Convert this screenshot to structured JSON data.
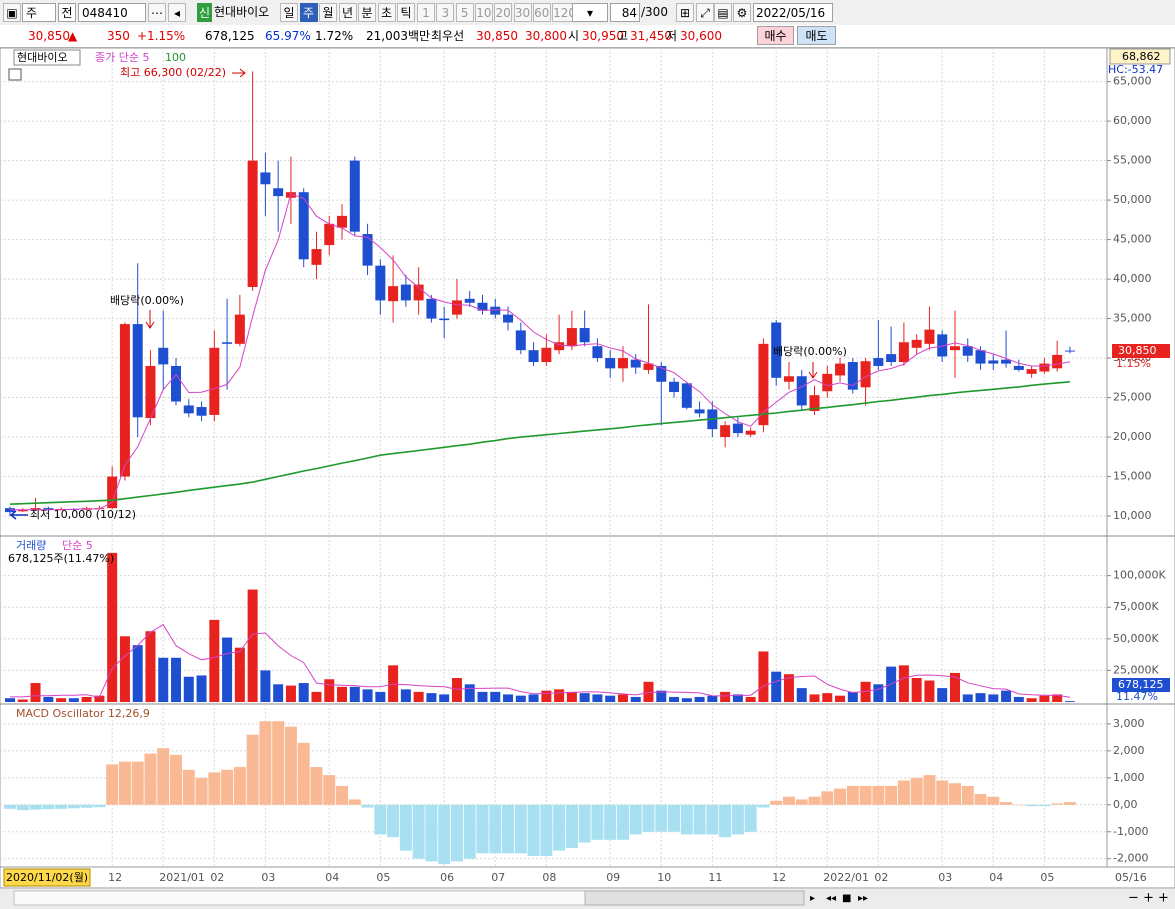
{
  "toolbar": {
    "period_type": "주",
    "market": "전",
    "code": "048410",
    "badge": "신",
    "name": "현대바이오",
    "periods": [
      "일",
      "주",
      "월",
      "년",
      "분",
      "초",
      "틱"
    ],
    "minutes": [
      "1",
      "3",
      "5",
      "10",
      "20",
      "30",
      "60",
      "120"
    ],
    "count": "84",
    "max_count": "/300",
    "date": "2022/05/16"
  },
  "quote": {
    "price": "30,850",
    "sign": "▲",
    "change": "350",
    "change_rate": "+1.15%",
    "volume": "678,125",
    "volume_rate": "65.97%",
    "turnover": "1.72%",
    "amount": "21,003백만",
    "best_label": "최우선",
    "ask": "30,850",
    "bid": "30,800",
    "open_label": "시",
    "open": "30,950",
    "high_label": "고",
    "high": "31,450",
    "low_label": "저",
    "low": "30,600",
    "buy": "매수",
    "sell": "매도"
  },
  "chart_data": [
    {
      "type": "candlestick",
      "legend_name": "현대바이오",
      "grid": true,
      "up_color": "#e8231f",
      "down_color": "#1f4fd1",
      "categories": [
        null,
        null,
        null,
        null,
        null,
        null,
        null,
        null,
        "12",
        null,
        null,
        null,
        "2021/01",
        null,
        null,
        null,
        "02",
        null,
        null,
        null,
        "03",
        null,
        null,
        null,
        null,
        "04",
        null,
        null,
        null,
        "05",
        null,
        null,
        null,
        null,
        "06",
        null,
        null,
        null,
        "07",
        null,
        null,
        null,
        "08",
        null,
        null,
        null,
        null,
        "09",
        null,
        null,
        null,
        "10",
        null,
        null,
        null,
        "11",
        null,
        null,
        null,
        null,
        "12",
        null,
        null,
        null,
        "2022/01",
        null,
        null,
        null,
        "02",
        null,
        null,
        null,
        null,
        "03",
        null,
        null,
        null,
        "04",
        null,
        null,
        null,
        "05",
        null,
        null
      ],
      "cursor_label": "2020/11/02(월)",
      "end_label": "05/16",
      "open": [
        11000,
        10600,
        10800,
        11000,
        10800,
        10900,
        10800,
        10900,
        11000,
        15000,
        34300,
        22400,
        31300,
        29000,
        24000,
        23800,
        22800,
        32000,
        31800,
        39000,
        53500,
        51500,
        50300,
        51000,
        41800,
        44300,
        46500,
        55000,
        45700,
        41700,
        37200,
        39300,
        37300,
        37500,
        35000,
        35500,
        37500,
        37000,
        36500,
        35500,
        33500,
        31000,
        29500,
        31000,
        31500,
        33800,
        31500,
        30000,
        28700,
        29800,
        28500,
        29000,
        27000,
        26800,
        23500,
        23500,
        20000,
        21700,
        20300,
        21500,
        34500,
        27000,
        27700,
        23300,
        25800,
        27800,
        29500,
        26300,
        30000,
        30500,
        29500,
        31300,
        31800,
        33000,
        31000,
        31500,
        31000,
        29700,
        29800,
        29000,
        28000,
        28300,
        28700,
        30950
      ],
      "high": [
        11200,
        11000,
        12300,
        11200,
        11100,
        11000,
        11200,
        11300,
        16300,
        34500,
        42000,
        31000,
        36000,
        30000,
        24800,
        24500,
        33500,
        37500,
        38000,
        66300,
        56000,
        55000,
        55500,
        51500,
        46000,
        48000,
        49500,
        55500,
        47000,
        42500,
        43000,
        40500,
        41500,
        38000,
        36500,
        40000,
        38500,
        38000,
        37500,
        36500,
        34500,
        32000,
        33000,
        35500,
        36000,
        36000,
        32500,
        31000,
        31500,
        30500,
        36800,
        29500,
        27500,
        27000,
        24500,
        24500,
        22000,
        22500,
        21200,
        32500,
        34800,
        29500,
        28500,
        26500,
        29000,
        30000,
        30000,
        30000,
        34800,
        34000,
        34500,
        33000,
        36500,
        33500,
        36000,
        32500,
        31500,
        30500,
        33500,
        29800,
        29000,
        30000,
        32200,
        31450
      ],
      "low": [
        10000,
        10500,
        10700,
        10700,
        10700,
        10600,
        10700,
        10800,
        10900,
        14500,
        20000,
        21500,
        26000,
        24000,
        22500,
        22000,
        22000,
        26000,
        31500,
        38500,
        48000,
        46000,
        47000,
        41500,
        40000,
        43000,
        45000,
        45500,
        40500,
        35500,
        34500,
        36500,
        35500,
        34500,
        32500,
        35000,
        36500,
        35500,
        35000,
        33500,
        30500,
        29000,
        29000,
        30500,
        31000,
        31500,
        29500,
        27500,
        27000,
        28000,
        28000,
        21500,
        25000,
        23500,
        22500,
        20000,
        18700,
        20000,
        20000,
        20600,
        26500,
        26000,
        23500,
        22800,
        25000,
        27000,
        25500,
        24000,
        28500,
        29000,
        29000,
        30500,
        31000,
        29500,
        27500,
        29500,
        28500,
        28500,
        28800,
        28300,
        27500,
        28000,
        28300,
        30600
      ],
      "close": [
        10500,
        10800,
        11000,
        10800,
        10900,
        10800,
        11000,
        11000,
        15000,
        34300,
        22500,
        29000,
        29200,
        24500,
        23000,
        22700,
        31300,
        31800,
        35500,
        55000,
        52000,
        50500,
        51000,
        42500,
        43800,
        47000,
        48000,
        46000,
        41700,
        37300,
        39100,
        37300,
        39300,
        35000,
        34800,
        37300,
        37000,
        36000,
        35500,
        34500,
        31000,
        29500,
        31300,
        32000,
        33800,
        32000,
        30000,
        28700,
        30000,
        28800,
        29300,
        27000,
        25700,
        23700,
        23000,
        21000,
        21500,
        20500,
        20800,
        31800,
        27500,
        27700,
        24000,
        25300,
        28000,
        29300,
        26000,
        29600,
        29000,
        29500,
        32000,
        32300,
        33600,
        30200,
        31500,
        30300,
        29300,
        29300,
        29300,
        28500,
        28600,
        29300,
        30400,
        30850
      ],
      "series": [
        {
          "name": "종가 단순 5",
          "color": "#d642c8",
          "values": [
            10800,
            10800,
            10800,
            10800,
            10800,
            10860,
            10900,
            10900,
            11740,
            16420,
            18760,
            22360,
            26000,
            27900,
            25640,
            25680,
            26140,
            26660,
            28860,
            35260,
            41120,
            44960,
            50800,
            50200,
            47960,
            46960,
            46460,
            45460,
            45300,
            44000,
            42420,
            40280,
            38940,
            37600,
            37100,
            36740,
            36680,
            36020,
            36120,
            36060,
            34800,
            33300,
            32360,
            31660,
            31520,
            31720,
            31820,
            31300,
            30900,
            29900,
            29360,
            28760,
            28160,
            26900,
            25740,
            24080,
            22980,
            21940,
            21360,
            23120,
            24420,
            25660,
            26360,
            27260,
            26500,
            26860,
            26520,
            27640,
            28380,
            28680,
            29220,
            30480,
            31280,
            31520,
            31920,
            31580,
            30980,
            30520,
            29940,
            29340,
            29000,
            29000,
            29220,
            29530
          ]
        },
        {
          "name": "100",
          "color": "#1f9a2d",
          "values": [
            11500,
            11560,
            11620,
            11690,
            11750,
            11810,
            11870,
            11940,
            12000,
            12200,
            12400,
            12600,
            12800,
            13000,
            13250,
            13450,
            13650,
            13850,
            14050,
            14300,
            14650,
            15000,
            15350,
            15700,
            16000,
            16350,
            16700,
            17000,
            17350,
            17700,
            17900,
            18100,
            18300,
            18500,
            18700,
            18900,
            19100,
            19350,
            19550,
            19800,
            20000,
            20150,
            20300,
            20450,
            20600,
            20750,
            20900,
            21050,
            21200,
            21400,
            21550,
            21700,
            21850,
            22000,
            22150,
            22300,
            22450,
            22600,
            22750,
            22900,
            23050,
            23250,
            23400,
            23600,
            23750,
            23950,
            24100,
            24300,
            24500,
            24650,
            24850,
            25050,
            25250,
            25400,
            25600,
            25750,
            25900,
            26050,
            26200,
            26350,
            26550,
            26700,
            26850,
            27000
          ]
        }
      ],
      "ylim": [
        7600,
        69000
      ],
      "yticks": [
        {
          "value": 10000,
          "label": "10,000"
        },
        {
          "value": 15000,
          "label": "15,000"
        },
        {
          "value": 20000,
          "label": "20,000"
        },
        {
          "value": 25000,
          "label": "25,000"
        },
        {
          "value": 30000,
          "label": "30,000"
        },
        {
          "value": 35000,
          "label": "35,000"
        },
        {
          "value": 40000,
          "label": "40,000"
        },
        {
          "value": 45000,
          "label": "45,000"
        },
        {
          "value": 50000,
          "label": "50,000"
        },
        {
          "value": 55000,
          "label": "55,000"
        },
        {
          "value": 60000,
          "label": "60,000"
        },
        {
          "value": 65000,
          "label": "65,000"
        }
      ],
      "annotations": [
        "최고 66,300 (02/22)",
        "최저 10,000 (10/12)",
        "배당락(0.00%)",
        "배당락(0.00%)"
      ],
      "top_label": "68,862",
      "hc_label": "HC:-53.47",
      "last_label": "30,850",
      "change_label": "1.15%"
    },
    {
      "type": "volume",
      "legend_name": "거래량",
      "info": "678,125주(11.47%)",
      "grid": true,
      "up_color": "#e8231f",
      "down_color": "#1f4fd1",
      "values": [
        3000,
        2000,
        15000,
        4000,
        3000,
        3000,
        4000,
        5000,
        118000,
        52000,
        45000,
        56000,
        35000,
        35000,
        20000,
        21000,
        65000,
        51000,
        43000,
        89000,
        25000,
        14000,
        13000,
        15000,
        8000,
        18000,
        12000,
        12000,
        10000,
        8000,
        29000,
        10000,
        8000,
        7000,
        6000,
        19000,
        14000,
        8000,
        8000,
        6000,
        5000,
        6000,
        9000,
        10000,
        8000,
        7000,
        6000,
        5000,
        6000,
        4000,
        16000,
        9000,
        4000,
        3000,
        4000,
        5000,
        8000,
        6000,
        4000,
        40000,
        24000,
        22000,
        11000,
        6000,
        7000,
        5000,
        8000,
        16000,
        14000,
        28000,
        29000,
        19000,
        17000,
        11000,
        23000,
        6000,
        7000,
        6000,
        9000,
        4000,
        3000,
        5000,
        6000,
        678
      ],
      "series": [
        {
          "name": "단순 5",
          "color": "#d642c8",
          "values": [
            4000,
            4000,
            5000,
            5000,
            5400,
            5400,
            5800,
            3800,
            26600,
            36400,
            44800,
            55200,
            61200,
            44600,
            38200,
            33400,
            35200,
            38400,
            40000,
            53800,
            54600,
            44400,
            36800,
            31200,
            15000,
            13600,
            13200,
            13000,
            12000,
            12000,
            14200,
            13800,
            13000,
            12400,
            12000,
            10000,
            10800,
            10800,
            11000,
            11000,
            8200,
            6600,
            6800,
            7200,
            7600,
            8000,
            8000,
            7200,
            6400,
            5600,
            7400,
            8000,
            7800,
            7600,
            7200,
            5000,
            4800,
            5200,
            5400,
            12600,
            16400,
            19200,
            20200,
            20600,
            14000,
            10200,
            7400,
            8400,
            10000,
            14200,
            19000,
            21200,
            21400,
            20800,
            19800,
            15200,
            12800,
            10600,
            10200,
            6400,
            5800,
            5400,
            5400,
            3700
          ]
        }
      ],
      "ylim": [
        0,
        129000
      ],
      "yticks": [
        {
          "value": 25000,
          "label": "25,000K"
        },
        {
          "value": 50000,
          "label": "50,000K"
        },
        {
          "value": 75000,
          "label": "75,000K"
        },
        {
          "value": 100000,
          "label": "100,000K"
        }
      ],
      "last_label": "678,125",
      "ratio_label": "11.47%"
    },
    {
      "type": "oscillator",
      "legend_name": "MACD Oscillator 12,26,9",
      "grid": true,
      "positive_color": "#f9b995",
      "negative_color": "#a8dff1",
      "values": [
        -150,
        -200,
        -180,
        -160,
        -150,
        -130,
        -110,
        -90,
        1500,
        1600,
        1600,
        1900,
        2100,
        1850,
        1300,
        1000,
        1200,
        1300,
        1400,
        2600,
        3100,
        3100,
        2900,
        2300,
        1400,
        1100,
        700,
        200,
        -100,
        -1100,
        -1200,
        -1700,
        -2000,
        -2100,
        -2200,
        -2100,
        -2000,
        -1800,
        -1800,
        -1800,
        -1800,
        -1900,
        -1900,
        -1700,
        -1600,
        -1400,
        -1300,
        -1300,
        -1300,
        -1100,
        -1000,
        -1000,
        -1000,
        -1100,
        -1100,
        -1100,
        -1200,
        -1100,
        -1000,
        -100,
        150,
        300,
        200,
        300,
        500,
        600,
        700,
        700,
        700,
        700,
        900,
        1000,
        1100,
        900,
        800,
        700,
        400,
        300,
        100,
        0,
        -50,
        -50,
        50,
        100
      ],
      "ylim": [
        -2270,
        3590
      ],
      "yticks": [
        {
          "value": -2000,
          "label": "-2,000"
        },
        {
          "value": -1000,
          "label": "-1,000"
        },
        {
          "value": 0,
          "label": "0,00"
        },
        {
          "value": 1000,
          "label": "1,000"
        },
        {
          "value": 2000,
          "label": "2,000"
        },
        {
          "value": 3000,
          "label": "3,000"
        }
      ]
    }
  ]
}
